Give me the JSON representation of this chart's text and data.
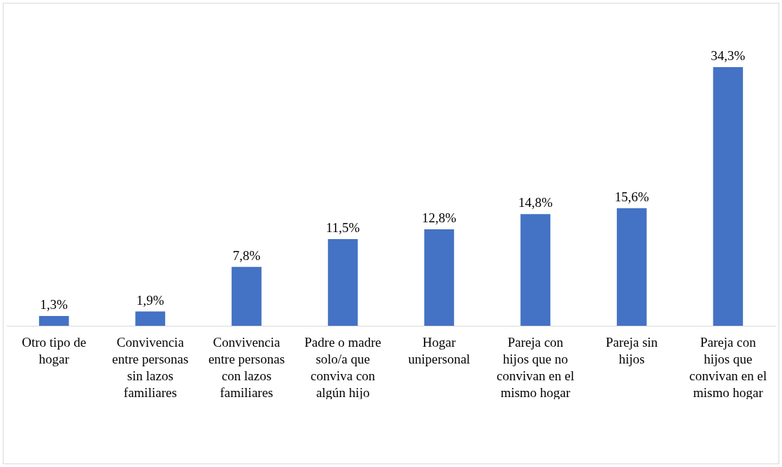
{
  "chart_data": {
    "type": "bar",
    "categories": [
      "Otro tipo de hogar",
      "Convivencia entre personas sin lazos familiares",
      "Convivencia entre personas con lazos familiares",
      "Padre o madre solo/a que conviva con algún hijo",
      "Hogar unipersonal",
      "Pareja con hijos que no convivan en el mismo hogar",
      "Pareja sin hijos",
      "Pareja con hijos que convivan en el mismo hogar"
    ],
    "values": [
      1.3,
      1.9,
      7.8,
      11.5,
      12.8,
      14.8,
      15.6,
      34.3
    ],
    "value_labels": [
      "1,3%",
      "1,9%",
      "7,8%",
      "11,5%",
      "12,8%",
      "14,8%",
      "15,6%",
      "34,3%"
    ],
    "color": "#4472c4"
  }
}
